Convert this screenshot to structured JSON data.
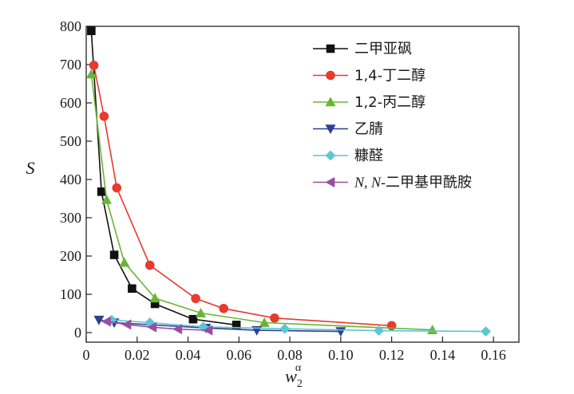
{
  "chart_data": {
    "type": "line",
    "title": "",
    "xlabel": "w",
    "xlabel_sub": "2",
    "xlabel_sup": "α",
    "ylabel": "S",
    "xlim": [
      0,
      0.17
    ],
    "ylim": [
      -25,
      800
    ],
    "x_ticks": [
      0,
      0.02,
      0.04,
      0.06,
      0.08,
      0.1,
      0.12,
      0.14,
      0.16
    ],
    "x_tick_labels": [
      "0",
      "0.02",
      "0.04",
      "0.06",
      "0.08",
      "0.10",
      "0.12",
      "0.14",
      "0.16"
    ],
    "y_ticks": [
      0,
      100,
      200,
      300,
      400,
      500,
      600,
      700,
      800
    ],
    "y_tick_labels": [
      "0",
      "100",
      "200",
      "300",
      "400",
      "500",
      "600",
      "700",
      "800"
    ],
    "legend_position": "top-right",
    "series": [
      {
        "name": "二甲亚砜",
        "color": "#111111",
        "marker": "square",
        "x": [
          0.002,
          0.006,
          0.011,
          0.018,
          0.027,
          0.042,
          0.059
        ],
        "y": [
          788,
          368,
          203,
          115,
          75,
          35,
          20
        ]
      },
      {
        "name_prefix": "1,4-",
        "name": "丁二醇",
        "color": "#e83a2e",
        "marker": "circle",
        "x": [
          0.003,
          0.007,
          0.012,
          0.025,
          0.043,
          0.054,
          0.074,
          0.12
        ],
        "y": [
          698,
          565,
          378,
          176,
          89,
          63,
          38,
          18
        ]
      },
      {
        "name_prefix": "1,2-",
        "name": "丙二醇",
        "color": "#6bb535",
        "marker": "triangle-up",
        "x": [
          0.002,
          0.008,
          0.015,
          0.027,
          0.045,
          0.07,
          0.136
        ],
        "y": [
          675,
          347,
          183,
          90,
          51,
          26,
          7
        ]
      },
      {
        "name": "乙腈",
        "color": "#2e3f94",
        "marker": "triangle-down",
        "x": [
          0.005,
          0.011,
          0.047,
          0.067,
          0.1
        ],
        "y": [
          33,
          26,
          12,
          6,
          3
        ]
      },
      {
        "name": "糠醛",
        "color": "#5cc6d6",
        "marker": "diamond",
        "x": [
          0.01,
          0.025,
          0.046,
          0.078,
          0.115,
          0.157
        ],
        "y": [
          33,
          26,
          15,
          10,
          5,
          3
        ]
      },
      {
        "name_prefix": "N, N-",
        "name": "二甲基甲酰胺",
        "color": "#9a4ea0",
        "marker": "triangle-left",
        "x": [
          0.008,
          0.016,
          0.026,
          0.036,
          0.048
        ],
        "y": [
          29,
          21,
          14,
          9,
          6
        ]
      }
    ]
  }
}
